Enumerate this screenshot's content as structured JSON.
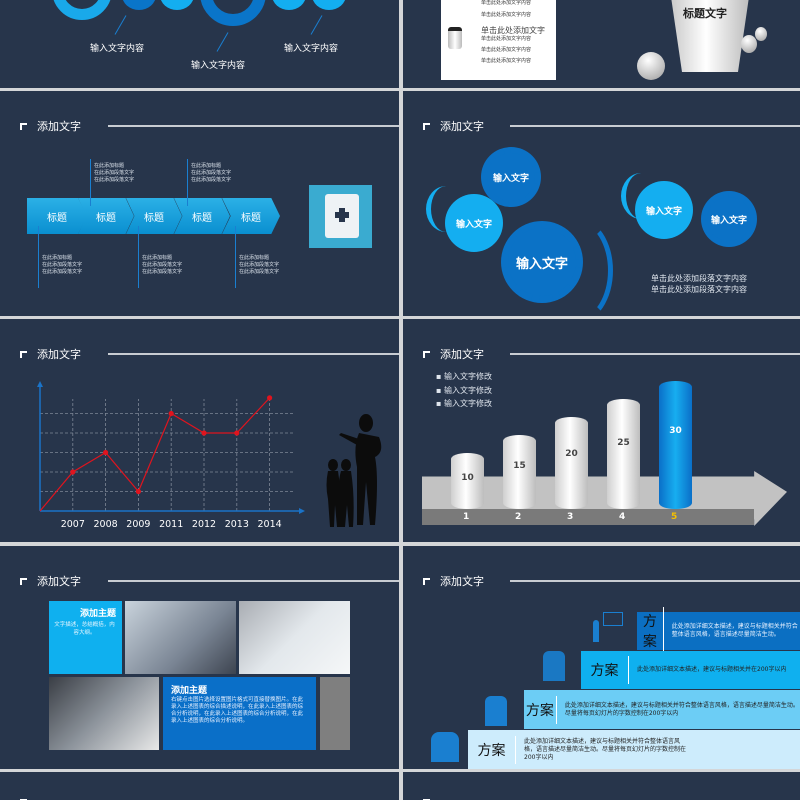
{
  "slide1": {
    "labels": [
      "输入文字内容",
      "输入文字内容",
      "输入文字内容"
    ]
  },
  "slide2": {
    "card_lines_top": [
      "单击此处添加文字内容",
      "单击此处添加文字内容"
    ],
    "card_title": "单击此处添加文字",
    "card_lines": [
      "单击此处添加文字内容",
      "单击此处添加文字内容",
      "单击此处添加文字内容"
    ],
    "cup_title": "标题文字"
  },
  "slide3": {
    "title": "添加文字",
    "arrows": [
      "标题",
      "标题",
      "标题",
      "标题",
      "标题"
    ],
    "notes_top": [
      {
        "title": "在此添加标题",
        "lines": [
          "在此添加段落文字",
          "在此添加段落文字"
        ]
      },
      {
        "title": "在此添加标题",
        "lines": [
          "在此添加段落文字",
          "在此添加段落文字"
        ]
      }
    ],
    "notes_bottom": [
      {
        "title": "在此添加标题",
        "lines": [
          "在此添加段落文字",
          "在此添加段落文字"
        ]
      },
      {
        "title": "在此添加标题",
        "lines": [
          "在此添加段落文字",
          "在此添加段落文字"
        ]
      },
      {
        "title": "在此添加标题",
        "lines": [
          "在此添加段落文字",
          "在此添加段落文字"
        ]
      }
    ],
    "icon": "notebook-plus-icon"
  },
  "slide4": {
    "title": "添加文字",
    "gears": [
      "输入文字",
      "输入文字",
      "输入文字",
      "输入文字",
      "输入文字"
    ],
    "text": [
      "单击此处添加段落文字内容",
      "单击此处添加段落文字内容"
    ]
  },
  "slide5": {
    "title": "添加文字",
    "chart_data": {
      "type": "line",
      "categories": [
        "2007",
        "2008",
        "2009",
        "2011",
        "2012",
        "2013",
        "2014"
      ],
      "values": [
        2,
        3,
        1,
        5,
        4,
        4,
        5.8
      ],
      "origin_value": 0,
      "ylim": [
        0,
        6
      ],
      "grid": true,
      "series_color": "#e0141e",
      "axis_color": "#1a73c8"
    }
  },
  "slide6": {
    "title": "添加文字",
    "bullets": [
      "输入文字修改",
      "输入文字修改",
      "输入文字修改"
    ],
    "chart_data": {
      "type": "bar",
      "categories": [
        "1",
        "2",
        "3",
        "4",
        "5"
      ],
      "values": [
        10,
        15,
        20,
        25,
        30
      ],
      "highlight": "5",
      "highlight_color": "#0a84d8"
    }
  },
  "slide7": {
    "title": "添加文字",
    "box1": {
      "title": "添加主题",
      "text": "文字描述，总结概括，内容大纲。"
    },
    "box2": {
      "title": "添加主题",
      "text": "右键点击图片选择设置图片格式可直接替换图片。在此录入上述图表的综合描述说明，在此录入上述图表的综合分析说明，在此录入上述图表的综合分析说明，在此录入上述图表的综合分析说明。"
    }
  },
  "slide8": {
    "title": "添加文字",
    "steps": [
      {
        "label": "方案",
        "text": "此处添加详细文本描述，建议与标题相关并符合整体语言风格，语言描述尽量简洁生动。"
      },
      {
        "label": "方案",
        "text": "此处添加详细文本描述，建议与标题相关并在200字以内"
      },
      {
        "label": "方案",
        "text": "此处添加详细文本描述，建议与标题相关并符合整体语言风格，语言描述尽量简洁生动。尽量将每页幻灯片的字数控制在200字以内"
      },
      {
        "label": "方案",
        "text": "此处添加详细文本描述，建议与标题相关并符合整体语言风格，语言描述尽量简洁生动。尽量将每页幻灯片的字数控制在200字以内"
      }
    ]
  }
}
